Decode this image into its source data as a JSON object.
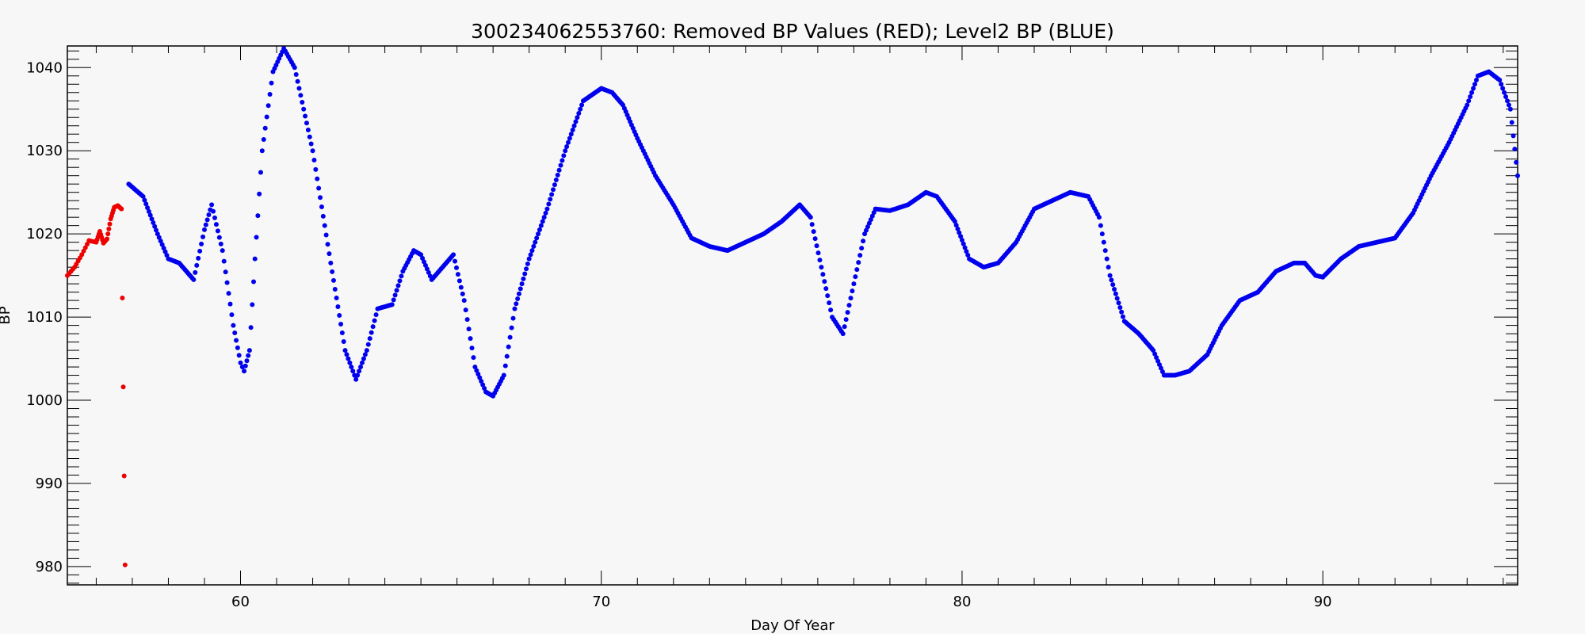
{
  "chart_data": {
    "type": "scatter",
    "title": "300234062553760: Removed BP Values (RED); Level2 BP (BLUE)",
    "xlabel": "Day Of Year",
    "ylabel": "BP",
    "xlim": [
      55.2,
      95.4
    ],
    "ylim": [
      977.8,
      1042.6
    ],
    "xticks": [
      60,
      70,
      80,
      90
    ],
    "yticks": [
      980,
      990,
      1000,
      1010,
      1020,
      1030,
      1040
    ],
    "x_minor_step": 1,
    "y_minor_step": 1,
    "grid": false,
    "colors": {
      "removed": "#ee0000",
      "level2": "#0000ee"
    },
    "series": [
      {
        "name": "Removed BP Values",
        "color": "#ee0000",
        "x": [
          55.2,
          55.4,
          55.6,
          55.8,
          56.0,
          56.1,
          56.2,
          56.3,
          56.4,
          56.5,
          56.6,
          56.7,
          56.8
        ],
        "y": [
          1015.0,
          1016.0,
          1017.5,
          1019.2,
          1019.0,
          1020.3,
          1018.9,
          1019.4,
          1021.8,
          1023.2,
          1023.4,
          1023.0,
          980.2
        ]
      },
      {
        "name": "Level2 BP",
        "color": "#0000ee",
        "x": [
          56.9,
          57.3,
          57.7,
          58.0,
          58.3,
          58.5,
          58.7,
          59.0,
          59.2,
          59.5,
          59.8,
          60.0,
          60.1,
          60.25,
          60.4,
          60.6,
          60.9,
          61.2,
          61.5,
          62.0,
          62.5,
          62.9,
          63.2,
          63.5,
          63.8,
          64.2,
          64.5,
          64.8,
          65.0,
          65.3,
          65.6,
          65.9,
          66.2,
          66.5,
          66.8,
          67.0,
          67.3,
          67.6,
          68.0,
          68.5,
          69.0,
          69.5,
          70.0,
          70.3,
          70.6,
          71.0,
          71.5,
          72.0,
          72.5,
          73.0,
          73.5,
          74.0,
          74.5,
          75.0,
          75.5,
          75.8,
          76.1,
          76.4,
          76.7,
          77.0,
          77.3,
          77.6,
          78.0,
          78.5,
          79.0,
          79.3,
          79.8,
          80.2,
          80.6,
          81.0,
          81.5,
          82.0,
          82.5,
          83.0,
          83.5,
          83.8,
          84.1,
          84.5,
          84.9,
          85.3,
          85.6,
          85.9,
          86.3,
          86.8,
          87.2,
          87.7,
          88.2,
          88.7,
          89.2,
          89.5,
          89.8,
          90.0,
          90.5,
          91.0,
          91.5,
          92.0,
          92.5,
          93.0,
          93.5,
          94.0,
          94.3,
          94.6,
          94.9,
          95.2,
          95.4
        ],
        "y": [
          1026.0,
          1024.5,
          1020.0,
          1017.0,
          1016.5,
          1015.5,
          1014.5,
          1020.5,
          1023.5,
          1018.0,
          1009.0,
          1004.5,
          1003.5,
          1006.0,
          1017.0,
          1030.0,
          1039.5,
          1042.3,
          1040.0,
          1030.0,
          1016.5,
          1006.0,
          1002.5,
          1006.0,
          1011.0,
          1011.5,
          1015.5,
          1018.0,
          1017.5,
          1014.5,
          1016.0,
          1017.5,
          1012.0,
          1004.0,
          1001.0,
          1000.5,
          1003.0,
          1011.0,
          1017.0,
          1023.0,
          1030.0,
          1036.0,
          1037.5,
          1037.0,
          1035.5,
          1031.5,
          1027.0,
          1023.5,
          1019.5,
          1018.5,
          1018.0,
          1019.0,
          1020.0,
          1021.5,
          1023.5,
          1022.0,
          1016.0,
          1010.0,
          1008.0,
          1014.0,
          1020.0,
          1023.0,
          1022.8,
          1023.5,
          1025.0,
          1024.5,
          1021.5,
          1017.0,
          1016.0,
          1016.5,
          1019.0,
          1023.0,
          1024.0,
          1025.0,
          1024.5,
          1022.0,
          1015.0,
          1009.5,
          1008.0,
          1006.0,
          1003.0,
          1003.0,
          1003.5,
          1005.5,
          1009.0,
          1012.0,
          1013.0,
          1015.5,
          1016.5,
          1016.5,
          1015.0,
          1014.8,
          1017.0,
          1018.5,
          1019.0,
          1019.5,
          1022.5,
          1027.0,
          1031.0,
          1035.5,
          1039.0,
          1039.5,
          1038.5,
          1035.0,
          1027.0
        ]
      }
    ]
  }
}
